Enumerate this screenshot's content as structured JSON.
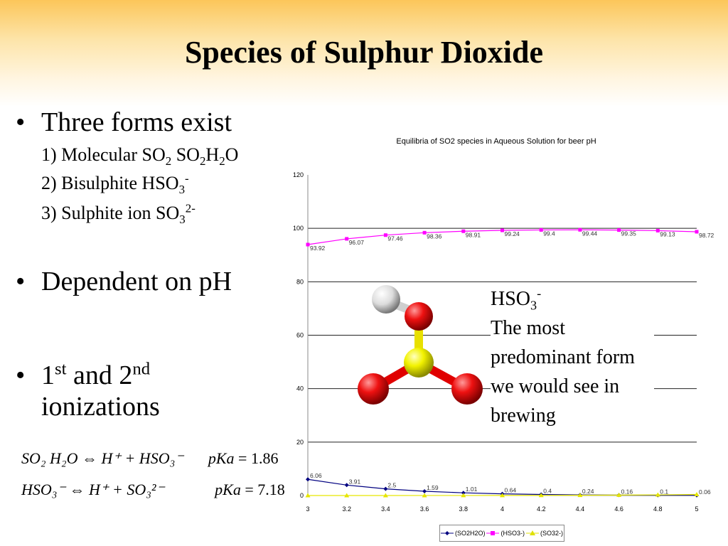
{
  "slide": {
    "title": "Species of Sulphur Dioxide",
    "bullets": {
      "b1": "Three forms exist",
      "b1_sub1_pre": "1) Molecular SO",
      "b1_sub1_s1": "2",
      "b1_sub1_mid": " SO",
      "b1_sub1_s2": "2",
      "b1_sub1_mid2": "H",
      "b1_sub1_s3": "2",
      "b1_sub1_end": "O",
      "b1_sub2_pre": "2) Bisulphite HSO",
      "b1_sub2_s": "3",
      "b1_sub2_sup": "-",
      "b1_sub3_pre": "3) Sulphite ion  SO",
      "b1_sub3_s": "3",
      "b1_sub3_sup": "2-",
      "b2": "Dependent on pH",
      "b3_pre": "1",
      "b3_sup1": "st",
      "b3_mid": "  and 2",
      "b3_sup2": "nd",
      "b3_line2": "ionizations"
    },
    "equations": {
      "eq1": "SO₂ H₂O ⇔ H⁺ + HSO₃⁻",
      "eq1_pka_label": "pKa",
      "eq1_pka_value": "= 1.86",
      "eq2": "HSO₃⁻ ⇔ H⁺ + SO₃²⁻",
      "eq2_pka_label": "pKa",
      "eq2_pka_value": "= 7.18"
    },
    "callout": {
      "line1_pre": "HSO",
      "line1_sub": "3",
      "line1_sup": "-",
      "text": "The most predominant form we would see in brewing"
    },
    "molecule_icon": "hso3-ball-and-stick-model-icon"
  },
  "chart_data": {
    "type": "line",
    "title": "Equilibria of SO2 species in Aqueous Solution for beer pH",
    "x": [
      3,
      3.2,
      3.4,
      3.6,
      3.8,
      4,
      4.2,
      4.4,
      4.6,
      4.8,
      5
    ],
    "x_tick_labels": [
      "3",
      "3.2",
      "3.4",
      "3.6",
      "3.8",
      "4",
      "4.2",
      "4.4",
      "4.6",
      "4.8",
      "5"
    ],
    "ylim": [
      0,
      120
    ],
    "y_ticks": [
      0,
      20,
      40,
      60,
      80,
      100,
      120
    ],
    "grid": "horizontal",
    "legend_position": "bottom",
    "series": [
      {
        "name": "(SO2H2O)",
        "color": "#000080",
        "marker": "diamond",
        "values": [
          6.06,
          3.91,
          2.5,
          1.59,
          1.01,
          0.64,
          0.4,
          0.24,
          0.16,
          0.1,
          0.06
        ],
        "labels": [
          "6.06",
          "3.91",
          "2.5",
          "1.59",
          "1.01",
          "0.64",
          "0.4",
          "0.24",
          "0.16",
          "0.1",
          "0.06"
        ]
      },
      {
        "name": "(HSO3-)",
        "color": "#ff00ff",
        "marker": "square",
        "values": [
          93.92,
          96.07,
          97.46,
          98.36,
          98.91,
          99.24,
          99.4,
          99.44,
          99.35,
          99.13,
          98.72
        ],
        "labels": [
          "93.92",
          "96.07",
          "97.46",
          "98.36",
          "98.91",
          "99.24",
          "99.4",
          "99.44",
          "99.35",
          "99.13",
          "98.72"
        ]
      },
      {
        "name": "(SO32-)",
        "color": "#ffff00",
        "marker": "triangle",
        "values": [
          0,
          0,
          0,
          0.01,
          0.02,
          0.04,
          0.06,
          0.1,
          0.16,
          0.25,
          0.4
        ],
        "labels": []
      }
    ]
  }
}
